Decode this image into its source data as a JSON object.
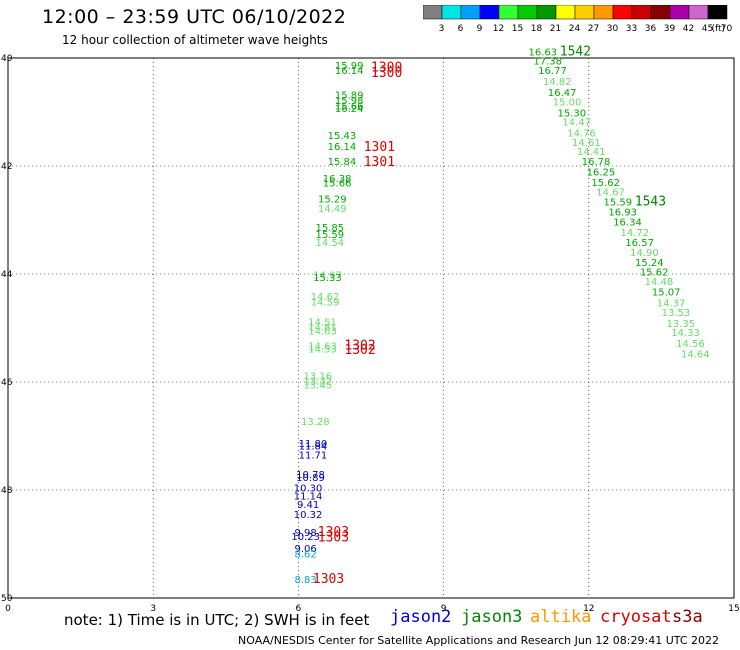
{
  "title": "12:00 – 23:59 UTC 06/10/2022",
  "subtitle": "12 hour collection of altimeter wave heights",
  "note": "note: 1) Time is in UTC; 2) SWH is in feet",
  "credit": "NOAA/NESDIS Center for Satellite Applications and Research    Jun 12 08:29:41 UTC 2022",
  "satellites": [
    {
      "name": "jason2",
      "color": "#0000dd"
    },
    {
      "name": "jason3",
      "color": "#008800"
    },
    {
      "name": "altika",
      "color": "#ff9900"
    },
    {
      "name": "cryosat",
      "color": "#dd0000"
    },
    {
      "name": "s3a",
      "color": "#880000"
    }
  ],
  "colorbar": {
    "unit": "(ft)",
    "colors": [
      "#808080",
      "#00e5e5",
      "#00a0ff",
      "#0000ff",
      "#33ff33",
      "#00cc00",
      "#009900",
      "#ffff00",
      "#ffcc00",
      "#ff9900",
      "#ff0000",
      "#cc0000",
      "#880000",
      "#aa00aa",
      "#cc66cc",
      "#000000"
    ],
    "labels": [
      "3",
      "6",
      "9",
      "12",
      "15",
      "18",
      "21",
      "24",
      "27",
      "30",
      "33",
      "36",
      "39",
      "42",
      "45",
      "70"
    ]
  },
  "chart_data": {
    "type": "scatter",
    "x_ticks": [
      "0",
      "3",
      "6",
      "9",
      "12",
      "15"
    ],
    "y_ticks": [
      "40",
      "42",
      "44",
      "46",
      "48",
      "50"
    ],
    "xlim": [
      0,
      15
    ],
    "ylim": [
      40,
      50
    ],
    "grid": true,
    "points": [
      {
        "lon": 7.05,
        "lat": 40.2,
        "v": "15.99",
        "c": "#00aa00"
      },
      {
        "lon": 7.05,
        "lat": 40.3,
        "v": "16.14",
        "c": "#00aa00"
      },
      {
        "lon": 7.05,
        "lat": 40.75,
        "v": "15.89",
        "c": "#00aa00"
      },
      {
        "lon": 7.05,
        "lat": 40.85,
        "v": "15.98",
        "c": "#00aa00"
      },
      {
        "lon": 7.05,
        "lat": 40.95,
        "v": "15.66",
        "c": "#00aa00"
      },
      {
        "lon": 7.05,
        "lat": 41.0,
        "v": "16.24",
        "c": "#00aa00"
      },
      {
        "lon": 6.9,
        "lat": 41.5,
        "v": "15.43",
        "c": "#00aa00"
      },
      {
        "lon": 6.9,
        "lat": 41.7,
        "v": "16.14",
        "c": "#00aa00"
      },
      {
        "lon": 6.9,
        "lat": 41.98,
        "v": "15.84",
        "c": "#00aa00"
      },
      {
        "lon": 6.8,
        "lat": 42.3,
        "v": "16.38",
        "c": "#00aa00"
      },
      {
        "lon": 6.8,
        "lat": 42.38,
        "v": "15.66",
        "c": "#00aa00"
      },
      {
        "lon": 6.7,
        "lat": 42.68,
        "v": "15.29",
        "c": "#00aa00"
      },
      {
        "lon": 6.7,
        "lat": 42.85,
        "v": "14.49",
        "c": "#66dd66"
      },
      {
        "lon": 6.65,
        "lat": 43.2,
        "v": "15.85",
        "c": "#00aa00"
      },
      {
        "lon": 6.65,
        "lat": 43.33,
        "v": "15.59",
        "c": "#00aa00"
      },
      {
        "lon": 6.65,
        "lat": 43.48,
        "v": "14.54",
        "c": "#66dd66"
      },
      {
        "lon": 6.6,
        "lat": 44.08,
        "v": "14.97",
        "c": "#66dd66"
      },
      {
        "lon": 6.6,
        "lat": 44.13,
        "v": "15.33",
        "c": "#00aa00"
      },
      {
        "lon": 6.55,
        "lat": 44.48,
        "v": "14.62",
        "c": "#66dd66"
      },
      {
        "lon": 6.55,
        "lat": 44.58,
        "v": "14.59",
        "c": "#66dd66"
      },
      {
        "lon": 6.5,
        "lat": 44.95,
        "v": "14.51",
        "c": "#66dd66"
      },
      {
        "lon": 6.5,
        "lat": 45.05,
        "v": "14.81",
        "c": "#66dd66"
      },
      {
        "lon": 6.5,
        "lat": 45.12,
        "v": "14.63",
        "c": "#66dd66"
      },
      {
        "lon": 6.5,
        "lat": 45.4,
        "v": "14.63",
        "c": "#66dd66"
      },
      {
        "lon": 6.5,
        "lat": 45.45,
        "v": "14.53",
        "c": "#66dd66"
      },
      {
        "lon": 6.4,
        "lat": 45.95,
        "v": "13.16",
        "c": "#66dd66"
      },
      {
        "lon": 6.4,
        "lat": 46.05,
        "v": "13.32",
        "c": "#66dd66"
      },
      {
        "lon": 6.4,
        "lat": 46.12,
        "v": "13.45",
        "c": "#66dd66"
      },
      {
        "lon": 6.35,
        "lat": 46.8,
        "v": "13.28",
        "c": "#66dd66"
      },
      {
        "lon": 6.3,
        "lat": 47.2,
        "v": "11.80",
        "c": "#0000cc"
      },
      {
        "lon": 6.3,
        "lat": 47.25,
        "v": "11.84",
        "c": "#0000cc"
      },
      {
        "lon": 6.3,
        "lat": 47.42,
        "v": "11.71",
        "c": "#0000cc"
      },
      {
        "lon": 6.25,
        "lat": 47.78,
        "v": "10.78",
        "c": "#0000cc"
      },
      {
        "lon": 6.25,
        "lat": 47.83,
        "v": "10.89",
        "c": "#0000cc"
      },
      {
        "lon": 6.2,
        "lat": 48.03,
        "v": "10.30",
        "c": "#0000cc"
      },
      {
        "lon": 6.2,
        "lat": 48.18,
        "v": "11.14",
        "c": "#0000cc"
      },
      {
        "lon": 6.2,
        "lat": 48.33,
        "v": "9.41",
        "c": "#0000cc"
      },
      {
        "lon": 6.2,
        "lat": 48.52,
        "v": "10.32",
        "c": "#0000cc"
      },
      {
        "lon": 6.15,
        "lat": 48.85,
        "v": "9.98",
        "c": "#0000cc"
      },
      {
        "lon": 6.15,
        "lat": 48.93,
        "v": "10.23",
        "c": "#0000cc"
      },
      {
        "lon": 6.15,
        "lat": 49.15,
        "v": "9.06",
        "c": "#0000cc"
      },
      {
        "lon": 6.15,
        "lat": 49.25,
        "v": "8.62",
        "c": "#00aacc"
      },
      {
        "lon": 6.15,
        "lat": 49.72,
        "v": "8.83",
        "c": "#00aacc"
      },
      {
        "lon": 11.05,
        "lat": 39.95,
        "v": "16.63",
        "c": "#00aa00"
      },
      {
        "lon": 11.15,
        "lat": 40.12,
        "v": "17.38",
        "c": "#00aa00"
      },
      {
        "lon": 11.25,
        "lat": 40.3,
        "v": "16.77",
        "c": "#00aa00"
      },
      {
        "lon": 11.35,
        "lat": 40.5,
        "v": "14.82",
        "c": "#66dd66"
      },
      {
        "lon": 11.45,
        "lat": 40.7,
        "v": "16.47",
        "c": "#00aa00"
      },
      {
        "lon": 11.55,
        "lat": 40.88,
        "v": "15.00",
        "c": "#66dd66"
      },
      {
        "lon": 11.65,
        "lat": 41.08,
        "v": "15.30",
        "c": "#00aa00"
      },
      {
        "lon": 11.75,
        "lat": 41.25,
        "v": "14.47",
        "c": "#66dd66"
      },
      {
        "lon": 11.85,
        "lat": 41.45,
        "v": "14.76",
        "c": "#66dd66"
      },
      {
        "lon": 11.95,
        "lat": 41.63,
        "v": "14.61",
        "c": "#66dd66"
      },
      {
        "lon": 12.05,
        "lat": 41.8,
        "v": "14.41",
        "c": "#66dd66"
      },
      {
        "lon": 12.15,
        "lat": 41.98,
        "v": "16.78",
        "c": "#00aa00"
      },
      {
        "lon": 12.25,
        "lat": 42.18,
        "v": "16.25",
        "c": "#00aa00"
      },
      {
        "lon": 12.35,
        "lat": 42.37,
        "v": "15.62",
        "c": "#00aa00"
      },
      {
        "lon": 12.45,
        "lat": 42.55,
        "v": "14.67",
        "c": "#66dd66"
      },
      {
        "lon": 12.6,
        "lat": 42.73,
        "v": "15.59",
        "c": "#00aa00"
      },
      {
        "lon": 12.7,
        "lat": 42.92,
        "v": "16.93",
        "c": "#00aa00"
      },
      {
        "lon": 12.8,
        "lat": 43.1,
        "v": "16.34",
        "c": "#00aa00"
      },
      {
        "lon": 12.95,
        "lat": 43.3,
        "v": "14.72",
        "c": "#66dd66"
      },
      {
        "lon": 13.05,
        "lat": 43.48,
        "v": "16.57",
        "c": "#00aa00"
      },
      {
        "lon": 13.15,
        "lat": 43.67,
        "v": "14.90",
        "c": "#66dd66"
      },
      {
        "lon": 13.25,
        "lat": 43.85,
        "v": "15.24",
        "c": "#00aa00"
      },
      {
        "lon": 13.35,
        "lat": 44.03,
        "v": "15.62",
        "c": "#00aa00"
      },
      {
        "lon": 13.45,
        "lat": 44.2,
        "v": "14.48",
        "c": "#66dd66"
      },
      {
        "lon": 13.6,
        "lat": 44.4,
        "v": "15.07",
        "c": "#00aa00"
      },
      {
        "lon": 13.7,
        "lat": 44.6,
        "v": "14.37",
        "c": "#66dd66"
      },
      {
        "lon": 13.8,
        "lat": 44.78,
        "v": "13.53",
        "c": "#66dd66"
      },
      {
        "lon": 13.9,
        "lat": 44.98,
        "v": "13.35",
        "c": "#66dd66"
      },
      {
        "lon": 14.0,
        "lat": 45.15,
        "v": "14.33",
        "c": "#66dd66"
      },
      {
        "lon": 14.1,
        "lat": 45.35,
        "v": "14.56",
        "c": "#66dd66"
      },
      {
        "lon": 14.2,
        "lat": 45.55,
        "v": "14.64",
        "c": "#66dd66"
      }
    ],
    "time_labels": [
      {
        "lon": 7.5,
        "lat": 40.25,
        "v": "1300",
        "c": "#dd0000"
      },
      {
        "lon": 7.5,
        "lat": 40.35,
        "v": "1300",
        "c": "#dd0000"
      },
      {
        "lon": 7.35,
        "lat": 41.72,
        "v": "1301",
        "c": "#dd0000"
      },
      {
        "lon": 7.35,
        "lat": 42.0,
        "v": "1301",
        "c": "#dd0000"
      },
      {
        "lon": 6.95,
        "lat": 45.4,
        "v": "1302",
        "c": "#dd0000"
      },
      {
        "lon": 6.95,
        "lat": 45.48,
        "v": "1302",
        "c": "#dd0000"
      },
      {
        "lon": 6.4,
        "lat": 48.85,
        "v": "1303",
        "c": "#dd0000"
      },
      {
        "lon": 6.4,
        "lat": 48.95,
        "v": "1303",
        "c": "#dd0000"
      },
      {
        "lon": 6.3,
        "lat": 49.72,
        "v": "1303",
        "c": "#dd0000"
      },
      {
        "lon": 11.4,
        "lat": 39.95,
        "v": "1542",
        "c": "#008800"
      },
      {
        "lon": 12.95,
        "lat": 42.73,
        "v": "1543",
        "c": "#008800"
      }
    ]
  }
}
